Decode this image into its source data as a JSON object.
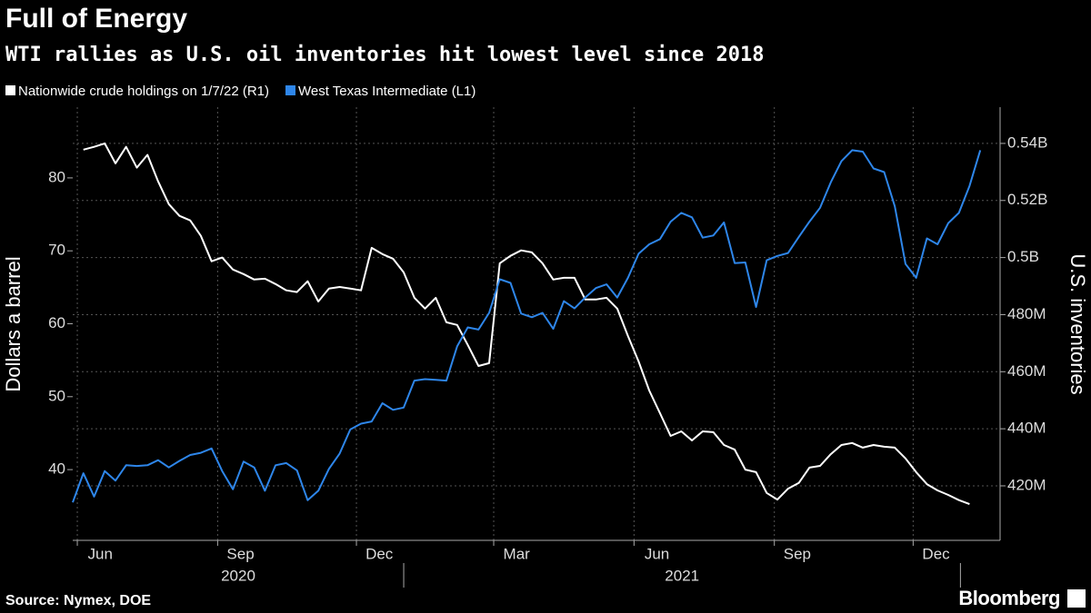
{
  "chart_data": {
    "type": "line",
    "title": "Full of Energy",
    "subtitle": "WTI rallies as U.S. oil inventories hit lowest level since 2018",
    "ylabel": "Dollars a barrel",
    "y2label": "U.S. inventories",
    "source": "Source: Nymex, DOE",
    "brand": "Bloomberg",
    "xlim": [
      "2020-05-29",
      "2022-01-27"
    ],
    "xticks": [
      {
        "value": "2020-06-01",
        "label": "Jun"
      },
      {
        "value": "2020-09-01",
        "label": "Sep"
      },
      {
        "value": "2020-12-01",
        "label": "Dec"
      },
      {
        "value": "2021-03-01",
        "label": "Mar"
      },
      {
        "value": "2021-06-01",
        "label": "Jun"
      },
      {
        "value": "2021-09-01",
        "label": "Sep"
      },
      {
        "value": "2021-12-01",
        "label": "Dec"
      }
    ],
    "years": [
      "2020",
      "2021"
    ],
    "ylim": [
      30.3,
      89.7
    ],
    "yticks": [
      40,
      50,
      60,
      70,
      80
    ],
    "y2lim": [
      400.9,
      552.7
    ],
    "y2ticks": [
      {
        "value": 420,
        "label": "420M"
      },
      {
        "value": 440,
        "label": "440M"
      },
      {
        "value": 460,
        "label": "460M"
      },
      {
        "value": 480,
        "label": "480M"
      },
      {
        "value": 500,
        "label": "0.5B"
      },
      {
        "value": 520,
        "label": "0.52B"
      },
      {
        "value": 540,
        "label": "0.54B"
      }
    ],
    "grid": true,
    "series": [
      {
        "name": "Nationwide crude holdings on 1/7/22 (R1)",
        "color": "#ffffff",
        "axis": "y2",
        "x": [
          "2020-06-05",
          "2020-06-12",
          "2020-06-19",
          "2020-06-26",
          "2020-07-03",
          "2020-07-10",
          "2020-07-17",
          "2020-07-24",
          "2020-07-31",
          "2020-08-07",
          "2020-08-14",
          "2020-08-21",
          "2020-08-28",
          "2020-09-04",
          "2020-09-11",
          "2020-09-18",
          "2020-09-25",
          "2020-10-02",
          "2020-10-09",
          "2020-10-16",
          "2020-10-23",
          "2020-10-30",
          "2020-11-06",
          "2020-11-13",
          "2020-11-20",
          "2020-11-27",
          "2020-12-04",
          "2020-12-11",
          "2020-12-18",
          "2020-12-25",
          "2021-01-01",
          "2021-01-08",
          "2021-01-15",
          "2021-01-22",
          "2021-01-29",
          "2021-02-05",
          "2021-02-12",
          "2021-02-19",
          "2021-02-26",
          "2021-03-05",
          "2021-03-12",
          "2021-03-19",
          "2021-03-26",
          "2021-04-02",
          "2021-04-09",
          "2021-04-16",
          "2021-04-23",
          "2021-04-30",
          "2021-05-07",
          "2021-05-14",
          "2021-05-21",
          "2021-05-28",
          "2021-06-04",
          "2021-06-11",
          "2021-06-18",
          "2021-06-25",
          "2021-07-02",
          "2021-07-09",
          "2021-07-16",
          "2021-07-23",
          "2021-07-30",
          "2021-08-06",
          "2021-08-13",
          "2021-08-20",
          "2021-08-27",
          "2021-09-03",
          "2021-09-10",
          "2021-09-17",
          "2021-09-24",
          "2021-10-01",
          "2021-10-08",
          "2021-10-15",
          "2021-10-22",
          "2021-10-29",
          "2021-11-05",
          "2021-11-12",
          "2021-11-19",
          "2021-11-26",
          "2021-12-03",
          "2021-12-10",
          "2021-12-17",
          "2021-12-24",
          "2021-12-31",
          "2022-01-07"
        ],
        "values": [
          537.8,
          538.8,
          540,
          533,
          538.8,
          531.5,
          536,
          526.7,
          518.7,
          514.6,
          513,
          507.6,
          498.7,
          500,
          495.8,
          494.2,
          492.3,
          492.6,
          490.7,
          488.5,
          487.9,
          491.7,
          484.6,
          489.1,
          489.7,
          489.1,
          488.5,
          503.4,
          501.2,
          499.6,
          494.8,
          485.9,
          482.1,
          485.9,
          477.3,
          476.4,
          469.4,
          462,
          463,
          498,
          500.6,
          502.5,
          501.8,
          498,
          492.3,
          492.9,
          492.9,
          485.3,
          485.3,
          485.9,
          482.1,
          472.5,
          463.6,
          453.4,
          445.5,
          437.5,
          439.1,
          435.9,
          439.1,
          438.8,
          434.3,
          432.7,
          425.7,
          424.8,
          417.5,
          415.2,
          419,
          421,
          426.4,
          427,
          431.1,
          434.3,
          435,
          433.4,
          434.3,
          433.7,
          433.4,
          429.6,
          424.8,
          420.6,
          418.4,
          416.8,
          415,
          413.6
        ]
      },
      {
        "name": "West Texas Intermediate (L1)",
        "color": "#2e86ea",
        "axis": "y",
        "x": [
          "2020-05-29",
          "2020-06-05",
          "2020-06-12",
          "2020-06-19",
          "2020-06-26",
          "2020-07-03",
          "2020-07-10",
          "2020-07-17",
          "2020-07-24",
          "2020-07-31",
          "2020-08-07",
          "2020-08-14",
          "2020-08-21",
          "2020-08-28",
          "2020-09-04",
          "2020-09-11",
          "2020-09-18",
          "2020-09-25",
          "2020-10-02",
          "2020-10-09",
          "2020-10-16",
          "2020-10-23",
          "2020-10-30",
          "2020-11-06",
          "2020-11-13",
          "2020-11-20",
          "2020-11-27",
          "2020-12-04",
          "2020-12-11",
          "2020-12-18",
          "2020-12-25",
          "2021-01-01",
          "2021-01-08",
          "2021-01-15",
          "2021-01-22",
          "2021-01-29",
          "2021-02-05",
          "2021-02-12",
          "2021-02-19",
          "2021-02-26",
          "2021-03-05",
          "2021-03-12",
          "2021-03-19",
          "2021-03-26",
          "2021-04-02",
          "2021-04-09",
          "2021-04-16",
          "2021-04-23",
          "2021-04-30",
          "2021-05-07",
          "2021-05-14",
          "2021-05-21",
          "2021-05-28",
          "2021-06-04",
          "2021-06-11",
          "2021-06-18",
          "2021-06-25",
          "2021-07-02",
          "2021-07-09",
          "2021-07-16",
          "2021-07-23",
          "2021-07-30",
          "2021-08-06",
          "2021-08-13",
          "2021-08-20",
          "2021-08-27",
          "2021-09-03",
          "2021-09-10",
          "2021-09-17",
          "2021-09-24",
          "2021-10-01",
          "2021-10-08",
          "2021-10-15",
          "2021-10-22",
          "2021-10-29",
          "2021-11-05",
          "2021-11-12",
          "2021-11-19",
          "2021-11-26",
          "2021-12-03",
          "2021-12-10",
          "2021-12-17",
          "2021-12-24",
          "2021-12-31",
          "2022-01-07",
          "2022-01-14"
        ],
        "values": [
          35.5,
          39.5,
          36.3,
          39.8,
          38.5,
          40.6,
          40.5,
          40.6,
          41.3,
          40.3,
          41.2,
          42.0,
          42.3,
          42.9,
          39.8,
          37.3,
          41.1,
          40.3,
          37.1,
          40.6,
          40.9,
          39.9,
          35.8,
          37.1,
          40.1,
          42.2,
          45.5,
          46.3,
          46.6,
          49.1,
          48.2,
          48.5,
          52.2,
          52.4,
          52.3,
          52.2,
          56.9,
          59.5,
          59.2,
          61.5,
          66.1,
          65.6,
          61.4,
          60.9,
          61.5,
          59.3,
          63.1,
          62.1,
          63.6,
          64.9,
          65.4,
          63.6,
          66.3,
          69.6,
          70.9,
          71.6,
          74.0,
          75.2,
          74.6,
          71.8,
          72.1,
          73.9,
          68.3,
          68.4,
          62.3,
          68.7,
          69.3,
          69.7,
          71.9,
          74.0,
          75.9,
          79.4,
          82.3,
          83.8,
          83.6,
          81.3,
          80.8,
          76.1,
          68.2,
          66.3,
          71.7,
          70.9,
          73.8,
          75.2,
          78.9,
          83.8
        ]
      }
    ]
  }
}
